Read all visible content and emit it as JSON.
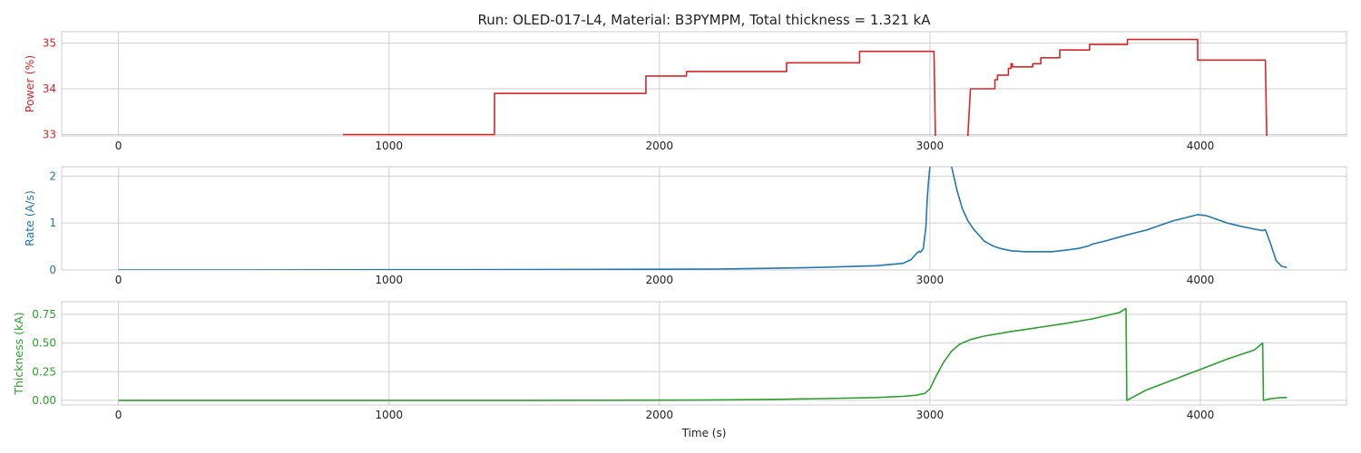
{
  "chart_data": {
    "title": "Run: OLED-017-L4, Material: B3PYMPM, Total thickness = 1.321 kA",
    "xlabel": "Time (s)",
    "x_ticks": [
      0,
      1000,
      2000,
      3000,
      4000
    ],
    "x_tick_labels": [
      "0",
      "1000",
      "2000",
      "3000",
      "4000"
    ],
    "xlim": [
      -210,
      4540
    ],
    "grid": true,
    "panels": [
      {
        "type": "line",
        "ylabel": "Power (%)",
        "color": "#d62728",
        "ylim": [
          32.97,
          35.25
        ],
        "y_ticks": [
          33,
          34,
          35
        ],
        "y_tick_labels": [
          "33",
          "34",
          "35"
        ],
        "series": [
          {
            "x": [
              830,
              1390,
              1390,
              1950,
              1950,
              2100,
              2100,
              2470,
              2470,
              2740,
              2740,
              3015,
              3015,
              3020
            ],
            "y": [
              33.0,
              33.0,
              33.9,
              33.9,
              34.28,
              34.28,
              34.38,
              34.38,
              34.57,
              34.57,
              34.82,
              34.82,
              34.82,
              32.97
            ]
          },
          {
            "x": [
              3140,
              3150,
              3150,
              3240,
              3240,
              3250,
              3250,
              3290,
              3290,
              3300,
              3300,
              3305,
              3305,
              3380,
              3380,
              3410,
              3410,
              3480,
              3480,
              3590,
              3590,
              3730,
              3730,
              3990,
              3990,
              4240,
              4240,
              4245
            ],
            "y": [
              32.97,
              34.0,
              34.0,
              34.0,
              34.2,
              34.2,
              34.3,
              34.3,
              34.45,
              34.45,
              34.55,
              34.55,
              34.48,
              34.48,
              34.55,
              34.55,
              34.68,
              34.68,
              34.85,
              34.85,
              34.97,
              34.97,
              35.08,
              35.08,
              34.63,
              34.63,
              34.63,
              32.97
            ]
          }
        ]
      },
      {
        "type": "line",
        "ylabel": "Rate (A/s)",
        "color": "#1f77b4",
        "ylim": [
          0,
          2.2
        ],
        "y_ticks": [
          0,
          1,
          2
        ],
        "y_tick_labels": [
          "0",
          "1",
          "2"
        ],
        "series": [
          {
            "x": [
              0,
              500,
              1000,
              1500,
              2000,
              2200,
              2400,
              2600,
              2800,
              2900,
              2930,
              2950,
              2960,
              2965,
              2975,
              2985,
              2990,
              2995,
              3000
            ],
            "y": [
              0.0,
              0.0,
              0.005,
              0.008,
              0.015,
              0.02,
              0.035,
              0.055,
              0.09,
              0.14,
              0.22,
              0.35,
              0.4,
              0.38,
              0.45,
              0.9,
              1.5,
              1.9,
              2.2
            ]
          },
          {
            "x": [
              3080,
              3100,
              3120,
              3140,
              3160,
              3180,
              3200,
              3230,
              3260,
              3300,
              3350,
              3400,
              3450,
              3500,
              3550,
              3590,
              3600,
              3650,
              3700,
              3750,
              3800,
              3850,
              3900,
              3950,
              3990,
              4020,
              4060,
              4100,
              4150,
              4200,
              4230,
              4240,
              4260,
              4280,
              4300,
              4320
            ],
            "y": [
              2.2,
              1.7,
              1.3,
              1.05,
              0.88,
              0.75,
              0.62,
              0.52,
              0.46,
              0.41,
              0.39,
              0.39,
              0.39,
              0.42,
              0.46,
              0.52,
              0.55,
              0.62,
              0.7,
              0.78,
              0.85,
              0.95,
              1.05,
              1.12,
              1.18,
              1.16,
              1.08,
              1.0,
              0.93,
              0.87,
              0.84,
              0.86,
              0.55,
              0.2,
              0.08,
              0.05
            ]
          }
        ]
      },
      {
        "type": "line",
        "ylabel": "Thickness (kA)",
        "color": "#2ca02c",
        "ylim": [
          -0.04,
          0.86
        ],
        "y_ticks": [
          0,
          0.25,
          0.5,
          0.75
        ],
        "y_tick_labels": [
          "0.00",
          "0.25",
          "0.50",
          "0.75"
        ],
        "series": [
          {
            "x": [
              0,
              500,
              1000,
              1500,
              2000,
              2200,
              2400,
              2600,
              2800,
              2900,
              2950,
              2980,
              3000,
              3020,
              3050,
              3080,
              3110,
              3150,
              3200,
              3300,
              3400,
              3500,
              3600,
              3700,
              3725,
              3728,
              3800,
              3900,
              4000,
              4100,
              4200,
              4230,
              4233,
              4260,
              4300,
              4320
            ],
            "y": [
              0.0,
              0.0,
              0.0,
              0.0,
              0.002,
              0.004,
              0.008,
              0.015,
              0.025,
              0.035,
              0.045,
              0.06,
              0.1,
              0.2,
              0.33,
              0.43,
              0.49,
              0.53,
              0.56,
              0.6,
              0.635,
              0.67,
              0.71,
              0.765,
              0.8,
              0.0,
              0.09,
              0.18,
              0.27,
              0.36,
              0.44,
              0.5,
              0.0,
              0.015,
              0.025,
              0.025
            ]
          }
        ]
      }
    ]
  }
}
